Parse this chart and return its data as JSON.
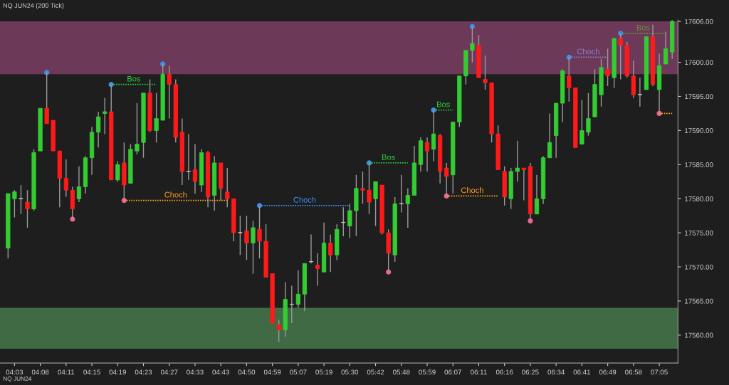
{
  "chart_data": {
    "type": "candlestick",
    "title": "NQ JUN24 (200 Tick)",
    "categories": [
      null,
      "04:03",
      null,
      null,
      null,
      "04:08",
      null,
      null,
      null,
      "04:11",
      null,
      null,
      null,
      "04:15",
      null,
      null,
      null,
      "04:19",
      null,
      null,
      null,
      "04:23",
      null,
      null,
      null,
      "04:27",
      null,
      null,
      null,
      "04:33",
      null,
      null,
      null,
      "04:43",
      null,
      null,
      null,
      "04:50",
      null,
      null,
      null,
      "04:59",
      null,
      null,
      null,
      "05:07",
      null,
      null,
      null,
      "05:19",
      null,
      null,
      null,
      "05:30",
      null,
      null,
      null,
      "05:42",
      null,
      null,
      null,
      "05:48",
      null,
      null,
      null,
      "05:59",
      null,
      null,
      null,
      "06:07",
      null,
      null,
      null,
      "06:11",
      null,
      null,
      null,
      "06:16",
      null,
      null,
      null,
      "06:25",
      null,
      null,
      null,
      "06:34",
      null,
      null,
      null,
      "06:41",
      null,
      null,
      null,
      "06:49",
      null,
      null,
      null,
      "06:58",
      null,
      null,
      null,
      "07:05",
      null,
      null
    ],
    "ohlc": [
      [
        17572.75,
        17580.75,
        17571.25,
        17580.75
      ],
      [
        17580,
        17581.25,
        17577.25,
        17581
      ],
      [
        17580,
        17582,
        17577.75,
        17580
      ],
      [
        17579.5,
        17581.25,
        17575.75,
        17578.5
      ],
      [
        17578.5,
        17587.25,
        17578.25,
        17586.75
      ],
      [
        17587,
        17593.25,
        17587,
        17593.25
      ],
      [
        17593.25,
        17598.5,
        17591,
        17591
      ],
      [
        17591.5,
        17591.5,
        17587,
        17587
      ],
      [
        17587,
        17587,
        17578.75,
        17583
      ],
      [
        17583,
        17585.75,
        17580.25,
        17581.25
      ],
      [
        17581.25,
        17581.75,
        17577,
        17578.5
      ],
      [
        17580,
        17584.75,
        17579.5,
        17581.75
      ],
      [
        17581.75,
        17586.25,
        17580.75,
        17586
      ],
      [
        17586,
        17590.5,
        17583.5,
        17589.75
      ],
      [
        17589.75,
        17592.75,
        17587.5,
        17592
      ],
      [
        17592.5,
        17594.75,
        17589.5,
        17592.75
      ],
      [
        17592.75,
        17596.75,
        17582.75,
        17582.75
      ],
      [
        17582.75,
        17585.5,
        17582.5,
        17585
      ],
      [
        17585.25,
        17588.25,
        17579.75,
        17582
      ],
      [
        17582.25,
        17588,
        17582.25,
        17587.25
      ],
      [
        17587,
        17594,
        17586.5,
        17588
      ],
      [
        17588.25,
        17595.5,
        17586,
        17595.5
      ],
      [
        17595.5,
        17597.5,
        17589.75,
        17590
      ],
      [
        17590,
        17595.5,
        17588.25,
        17591.75
      ],
      [
        17591.5,
        17599.75,
        17591.5,
        17598.25
      ],
      [
        17598.25,
        17599.5,
        17591.75,
        17596.75
      ],
      [
        17596.75,
        17597.5,
        17588.25,
        17589
      ],
      [
        17589.75,
        17591.75,
        17582,
        17584
      ],
      [
        17584,
        17589.5,
        17582.75,
        17584
      ],
      [
        17584.25,
        17588,
        17580.75,
        17582.5
      ],
      [
        17582,
        17587.25,
        17581,
        17586.75
      ],
      [
        17586.75,
        17587,
        17578.75,
        17580.25
      ],
      [
        17580.5,
        17586.25,
        17578.25,
        17585.25
      ],
      [
        17585.25,
        17585.25,
        17579.75,
        17581.5
      ],
      [
        17581,
        17584.5,
        17578.75,
        17580
      ],
      [
        17580,
        17580,
        17573.75,
        17575
      ],
      [
        17575,
        17577.5,
        17571.75,
        17575
      ],
      [
        17575.25,
        17577.5,
        17571,
        17573.5
      ],
      [
        17573.5,
        17576.75,
        17569,
        17575.75
      ],
      [
        17575.5,
        17579,
        17571.25,
        17573.75
      ],
      [
        17573.75,
        17576.25,
        17568.5,
        17568.5
      ],
      [
        17569,
        17569,
        17561.75,
        17561.75
      ],
      [
        17561.5,
        17562.25,
        17559,
        17560.75
      ],
      [
        17560.75,
        17567.75,
        17559.75,
        17565.25
      ],
      [
        17564.5,
        17567.25,
        17561.75,
        17564.5
      ],
      [
        17564.5,
        17569.5,
        17564,
        17566
      ],
      [
        17566,
        17570.5,
        17563.5,
        17570.5
      ],
      [
        17570.75,
        17574.75,
        17570.5,
        17570.75
      ],
      [
        17570.25,
        17572,
        17567.25,
        17569.75
      ],
      [
        17569.25,
        17576.5,
        17569.25,
        17573.5
      ],
      [
        17573.5,
        17574.75,
        17569.25,
        17571.75
      ],
      [
        17571.75,
        17576.25,
        17571,
        17575.5
      ],
      [
        17576.5,
        17578.75,
        17574.5,
        17576.5
      ],
      [
        17576,
        17579.25,
        17574.25,
        17578.25
      ],
      [
        17578.25,
        17583.5,
        17574.5,
        17581.5
      ],
      [
        17581.5,
        17584,
        17579.25,
        17581.25
      ],
      [
        17581.25,
        17585.25,
        17577.75,
        17579.5
      ],
      [
        17580,
        17582.5,
        17576,
        17582.5
      ],
      [
        17582,
        17582,
        17574.75,
        17575
      ],
      [
        17575,
        17575.5,
        17569.25,
        17572
      ],
      [
        17571.75,
        17580.25,
        17570.75,
        17579.25
      ],
      [
        17579.25,
        17583.5,
        17578,
        17579.25
      ],
      [
        17579.25,
        17581.5,
        17575.75,
        17580.5
      ],
      [
        17580.5,
        17587.75,
        17580.5,
        17585.25
      ],
      [
        17585,
        17589,
        17584,
        17588.5
      ],
      [
        17588.25,
        17589,
        17584,
        17587
      ],
      [
        17587.25,
        17593,
        17585.5,
        17589.5
      ],
      [
        17589.25,
        17589.5,
        17582.25,
        17584
      ],
      [
        17584.5,
        17585.25,
        17580.4,
        17583.25
      ],
      [
        17583.5,
        17591.25,
        17580.75,
        17591.25
      ],
      [
        17591.25,
        17598,
        17590.5,
        17598
      ],
      [
        17598,
        17601.75,
        17596.75,
        17601.75
      ],
      [
        17601.75,
        17605.25,
        17600,
        17602.75
      ],
      [
        17602.5,
        17604,
        17597.75,
        17597.75
      ],
      [
        17597.5,
        17601,
        17596,
        17597
      ],
      [
        17597,
        17597,
        17588.25,
        17589.5
      ],
      [
        17589.5,
        17590.75,
        17584.25,
        17584.25
      ],
      [
        17584,
        17584.75,
        17579,
        17580.25
      ],
      [
        17580,
        17584.5,
        17578.5,
        17584
      ],
      [
        17584,
        17588.5,
        17582.5,
        17584.5
      ],
      [
        17584.5,
        17584.5,
        17579.75,
        17584.25
      ],
      [
        17584.75,
        17585.25,
        17576.75,
        17577.75
      ],
      [
        17577.75,
        17583.5,
        17577.75,
        17580
      ],
      [
        17580,
        17586.25,
        17579.25,
        17586
      ],
      [
        17586,
        17592.5,
        17586,
        17588.25
      ],
      [
        17589.25,
        17594,
        17586,
        17594
      ],
      [
        17594,
        17599,
        17591.25,
        17598.75
      ],
      [
        17598,
        17600.75,
        17594.25,
        17596.25
      ],
      [
        17596.25,
        17596.25,
        17587.5,
        17587.5
      ],
      [
        17588,
        17594.5,
        17588,
        17590
      ],
      [
        17589.75,
        17595.5,
        17589.25,
        17591.75
      ],
      [
        17592,
        17599,
        17592,
        17596.75
      ],
      [
        17595.25,
        17600.5,
        17593.5,
        17599.25
      ],
      [
        17599,
        17602,
        17596.5,
        17598
      ],
      [
        17597.75,
        17603.5,
        17596.25,
        17603.5
      ],
      [
        17603.5,
        17604.25,
        17597.5,
        17602.5
      ],
      [
        17602.5,
        17603,
        17597.75,
        17598
      ],
      [
        17598,
        17600.25,
        17594.75,
        17595.25
      ],
      [
        17595.25,
        17597.75,
        17593.5,
        17595.25
      ],
      [
        17596,
        17603.75,
        17596,
        17603.75
      ],
      [
        17603.75,
        17605.5,
        17596.5,
        17596.75
      ],
      [
        17596,
        17601.25,
        17592.5,
        17599.5
      ],
      [
        17599.75,
        17604.5,
        17599.75,
        17602
      ],
      [
        17601.5,
        17606.25,
        17600.5,
        17606
      ]
    ],
    "ylim": [
      17555.9,
      17606.2
    ],
    "yticks": [
      {
        "value": 17560,
        "label": "17560.00"
      },
      {
        "value": 17565,
        "label": "17565.00"
      },
      {
        "value": 17570,
        "label": "17570.00"
      },
      {
        "value": 17575,
        "label": "17575.00"
      },
      {
        "value": 17580,
        "label": "17580.00"
      },
      {
        "value": 17585,
        "label": "17585.00"
      },
      {
        "value": 17590,
        "label": "17590.00"
      },
      {
        "value": 17595,
        "label": "17595.00"
      },
      {
        "value": 17600,
        "label": "17600.00"
      },
      {
        "value": 17606,
        "label": "17606.00"
      }
    ],
    "bands": [
      {
        "axis": "y",
        "from": 17598.25,
        "to": 17606,
        "color": "#8e4470"
      },
      {
        "axis": "y",
        "from": 17558,
        "to": 17564,
        "color": "#4f8a52"
      }
    ],
    "series": [
      {
        "type": "line",
        "name": "Bos",
        "color": "#2ecc40",
        "line_style": "dotted",
        "values": [
          null,
          null,
          null,
          null,
          null,
          null,
          null,
          null,
          null,
          null,
          null,
          null,
          null,
          null,
          null,
          null,
          17596.75,
          17596.75,
          17596.75,
          17596.75,
          17596.75,
          17596.75,
          17596.75,
          17596.75,
          null,
          null,
          null,
          null,
          null,
          null,
          null,
          null,
          null,
          null,
          null,
          null,
          null,
          null,
          null,
          null,
          null,
          null,
          null,
          null,
          null,
          null,
          null,
          null,
          null,
          null,
          null,
          null,
          null,
          null,
          null,
          null,
          null,
          null,
          null,
          null,
          null,
          null,
          null,
          null,
          null,
          null,
          null,
          null,
          null,
          null,
          null,
          null,
          null,
          null,
          null,
          null,
          null,
          null,
          null,
          null,
          null,
          null,
          null,
          null,
          null,
          null,
          null,
          null,
          null,
          null,
          null,
          null,
          null,
          null,
          null,
          null,
          null,
          null,
          null,
          null,
          null,
          null,
          null,
          null
        ]
      },
      {
        "type": "line",
        "name": "Choch",
        "color": "#ff9f1a",
        "line_style": "dotted",
        "values": [
          null,
          null,
          null,
          null,
          null,
          null,
          null,
          null,
          null,
          null,
          null,
          null,
          null,
          null,
          null,
          null,
          null,
          null,
          17579.75,
          17579.75,
          17579.75,
          17579.75,
          17579.75,
          17579.75,
          17579.75,
          17579.75,
          17579.75,
          17579.75,
          17579.75,
          17579.75,
          17579.75,
          17579.75,
          17579.75,
          17579.75,
          17579.75,
          null,
          null,
          null,
          null,
          null,
          null,
          null,
          null,
          null,
          null,
          null,
          null,
          null,
          null,
          null,
          null,
          null,
          null,
          null,
          null,
          null,
          null,
          null,
          null,
          null,
          null,
          null,
          null,
          null,
          null,
          null,
          null,
          null,
          null,
          null,
          null,
          null,
          null,
          null,
          null,
          null,
          null,
          null,
          null,
          null,
          null,
          null,
          null,
          null,
          null,
          null,
          null,
          null,
          null,
          null,
          null,
          null,
          null,
          null,
          null,
          null,
          null,
          null,
          null,
          null,
          null,
          null,
          null,
          null
        ]
      },
      {
        "type": "line",
        "name": "Choch",
        "color": "#3b8eea",
        "line_style": "dotted",
        "values": [
          null,
          null,
          null,
          null,
          null,
          null,
          null,
          null,
          null,
          null,
          null,
          null,
          null,
          null,
          null,
          null,
          null,
          null,
          null,
          null,
          null,
          null,
          null,
          null,
          null,
          null,
          null,
          null,
          null,
          null,
          null,
          null,
          null,
          null,
          null,
          null,
          null,
          null,
          null,
          17579,
          17579,
          17579,
          17579,
          17579,
          17579,
          17579,
          17579,
          17579,
          17579,
          17579,
          17579,
          17579,
          17579,
          17579,
          null,
          null,
          null,
          null,
          null,
          null,
          null,
          null,
          null,
          null,
          null,
          null,
          null,
          null,
          null,
          null,
          null,
          null,
          null,
          null,
          null,
          null,
          null,
          null,
          null,
          null,
          null,
          null,
          null,
          null,
          null,
          null,
          null,
          null,
          null,
          null,
          null,
          null,
          null,
          null,
          null,
          null,
          null,
          null,
          null,
          null,
          null,
          null,
          null,
          null
        ]
      },
      {
        "type": "line",
        "name": "Bos",
        "color": "#2ecc40",
        "line_style": "dotted",
        "values": [
          null,
          null,
          null,
          null,
          null,
          null,
          null,
          null,
          null,
          null,
          null,
          null,
          null,
          null,
          null,
          null,
          null,
          null,
          null,
          null,
          null,
          null,
          null,
          null,
          null,
          null,
          null,
          null,
          null,
          null,
          null,
          null,
          null,
          null,
          null,
          null,
          null,
          null,
          null,
          null,
          null,
          null,
          null,
          null,
          null,
          null,
          null,
          null,
          null,
          null,
          null,
          null,
          null,
          null,
          null,
          null,
          17585.25,
          17585.25,
          17585.25,
          17585.25,
          17585.25,
          17585.25,
          17585.25,
          null,
          null,
          null,
          null,
          null,
          null,
          null,
          null,
          null,
          null,
          null,
          null,
          null,
          null,
          null,
          null,
          null,
          null,
          null,
          null,
          null,
          null,
          null,
          null,
          null,
          null,
          null,
          null,
          null,
          null,
          null,
          null,
          null,
          null,
          null,
          null,
          null,
          null,
          null,
          null,
          null
        ]
      },
      {
        "type": "line",
        "name": "Bos",
        "color": "#2ecc40",
        "line_style": "dotted",
        "values": [
          null,
          null,
          null,
          null,
          null,
          null,
          null,
          null,
          null,
          null,
          null,
          null,
          null,
          null,
          null,
          null,
          null,
          null,
          null,
          null,
          null,
          null,
          null,
          null,
          null,
          null,
          null,
          null,
          null,
          null,
          null,
          null,
          null,
          null,
          null,
          null,
          null,
          null,
          null,
          null,
          null,
          null,
          null,
          null,
          null,
          null,
          null,
          null,
          null,
          null,
          null,
          null,
          null,
          null,
          null,
          null,
          null,
          null,
          null,
          null,
          null,
          null,
          null,
          null,
          null,
          null,
          17593,
          17593,
          17593,
          17593,
          null,
          null,
          null,
          null,
          null,
          null,
          null,
          null,
          null,
          null,
          null,
          null,
          null,
          null,
          null,
          null,
          null,
          null,
          null,
          null,
          null,
          null,
          null,
          null,
          null,
          null,
          null,
          null,
          null,
          null,
          null,
          null,
          null,
          null
        ]
      },
      {
        "type": "line",
        "name": "Choch",
        "color": "#ff9f1a",
        "line_style": "dotted",
        "values": [
          null,
          null,
          null,
          null,
          null,
          null,
          null,
          null,
          null,
          null,
          null,
          null,
          null,
          null,
          null,
          null,
          null,
          null,
          null,
          null,
          null,
          null,
          null,
          null,
          null,
          null,
          null,
          null,
          null,
          null,
          null,
          null,
          null,
          null,
          null,
          null,
          null,
          null,
          null,
          null,
          null,
          null,
          null,
          null,
          null,
          null,
          null,
          null,
          null,
          null,
          null,
          null,
          null,
          null,
          null,
          null,
          null,
          null,
          null,
          null,
          null,
          null,
          null,
          null,
          null,
          null,
          null,
          null,
          17580.4,
          17580.4,
          17580.4,
          17580.4,
          17580.4,
          17580.4,
          17580.4,
          17580.4,
          17580.4,
          null,
          null,
          null,
          null,
          null,
          null,
          null,
          null,
          null,
          null,
          null,
          null,
          null,
          null,
          null,
          null,
          null,
          null,
          null,
          null,
          null,
          null,
          null,
          null,
          null,
          null,
          null
        ]
      },
      {
        "type": "line",
        "name": "Choch",
        "color": "#8a7fd6",
        "line_style": "dotted",
        "values": [
          null,
          null,
          null,
          null,
          null,
          null,
          null,
          null,
          null,
          null,
          null,
          null,
          null,
          null,
          null,
          null,
          null,
          null,
          null,
          null,
          null,
          null,
          null,
          null,
          null,
          null,
          null,
          null,
          null,
          null,
          null,
          null,
          null,
          null,
          null,
          null,
          null,
          null,
          null,
          null,
          null,
          null,
          null,
          null,
          null,
          null,
          null,
          null,
          null,
          null,
          null,
          null,
          null,
          null,
          null,
          null,
          null,
          null,
          null,
          null,
          null,
          null,
          null,
          null,
          null,
          null,
          null,
          null,
          null,
          null,
          null,
          null,
          null,
          null,
          null,
          null,
          null,
          null,
          null,
          null,
          null,
          null,
          null,
          null,
          null,
          null,
          null,
          17600.75,
          17600.75,
          17600.75,
          17600.75,
          17600.75,
          17600.75,
          17600.75,
          null,
          null,
          null,
          null,
          null,
          null,
          null,
          null,
          null,
          null
        ]
      },
      {
        "type": "line",
        "name": "Bos",
        "color": "#6b8e3a",
        "line_style": "dotted",
        "values": [
          null,
          null,
          null,
          null,
          null,
          null,
          null,
          null,
          null,
          null,
          null,
          null,
          null,
          null,
          null,
          null,
          null,
          null,
          null,
          null,
          null,
          null,
          null,
          null,
          null,
          null,
          null,
          null,
          null,
          null,
          null,
          null,
          null,
          null,
          null,
          null,
          null,
          null,
          null,
          null,
          null,
          null,
          null,
          null,
          null,
          null,
          null,
          null,
          null,
          null,
          null,
          null,
          null,
          null,
          null,
          null,
          null,
          null,
          null,
          null,
          null,
          null,
          null,
          null,
          null,
          null,
          null,
          null,
          null,
          null,
          null,
          null,
          null,
          null,
          null,
          null,
          null,
          null,
          null,
          null,
          null,
          null,
          null,
          null,
          null,
          null,
          null,
          null,
          null,
          null,
          null,
          null,
          null,
          null,
          null,
          17604.25,
          17604.25,
          17604.25,
          17604.25,
          17604.25,
          17604.25,
          17604.25,
          17604.25,
          null
        ]
      },
      {
        "type": "line",
        "color": "#ff9f1a",
        "line_style": "dotted",
        "values": [
          null,
          null,
          null,
          null,
          null,
          null,
          null,
          null,
          null,
          null,
          null,
          null,
          null,
          null,
          null,
          null,
          null,
          null,
          null,
          null,
          null,
          null,
          null,
          null,
          null,
          null,
          null,
          null,
          null,
          null,
          null,
          null,
          null,
          null,
          null,
          null,
          null,
          null,
          null,
          null,
          null,
          null,
          null,
          null,
          null,
          null,
          null,
          null,
          null,
          null,
          null,
          null,
          null,
          null,
          null,
          null,
          null,
          null,
          null,
          null,
          null,
          null,
          null,
          null,
          null,
          null,
          null,
          null,
          null,
          null,
          null,
          null,
          null,
          null,
          null,
          null,
          null,
          null,
          null,
          null,
          null,
          null,
          null,
          null,
          null,
          null,
          null,
          null,
          null,
          null,
          null,
          null,
          null,
          null,
          null,
          null,
          null,
          null,
          null,
          null,
          null,
          17592.5,
          17592.5,
          17592.5
        ]
      },
      {
        "type": "scatter",
        "color": "#3b8eea",
        "values": [
          null,
          null,
          null,
          null,
          null,
          null,
          17598.5,
          null,
          null,
          null,
          null,
          null,
          null,
          null,
          null,
          null,
          17596.75,
          null,
          null,
          null,
          null,
          null,
          null,
          null,
          17599.75,
          null,
          null,
          null,
          null,
          null,
          null,
          null,
          null,
          null,
          null,
          null,
          null,
          null,
          null,
          17579,
          null,
          null,
          null,
          null,
          null,
          null,
          null,
          null,
          null,
          null,
          null,
          null,
          null,
          null,
          null,
          null,
          17585.25,
          null,
          null,
          null,
          null,
          null,
          null,
          null,
          null,
          null,
          17593,
          null,
          null,
          null,
          null,
          null,
          17605.25,
          null,
          null,
          null,
          null,
          null,
          null,
          null,
          null,
          null,
          null,
          null,
          null,
          null,
          null,
          17600.75,
          null,
          null,
          null,
          null,
          null,
          null,
          null,
          17604.25,
          null,
          null,
          null,
          null,
          null,
          null,
          null,
          null
        ]
      },
      {
        "type": "scatter",
        "color": "#f06292",
        "values": [
          null,
          null,
          null,
          null,
          null,
          null,
          null,
          null,
          null,
          null,
          17577,
          null,
          null,
          null,
          null,
          null,
          null,
          null,
          17579.75,
          null,
          null,
          null,
          null,
          null,
          null,
          null,
          null,
          null,
          null,
          null,
          null,
          null,
          null,
          null,
          null,
          null,
          null,
          null,
          null,
          null,
          null,
          null,
          null,
          null,
          null,
          null,
          null,
          null,
          null,
          null,
          null,
          null,
          null,
          null,
          null,
          null,
          null,
          null,
          null,
          17569.25,
          null,
          null,
          null,
          null,
          null,
          null,
          null,
          null,
          17580.4,
          null,
          null,
          null,
          null,
          null,
          null,
          null,
          null,
          null,
          null,
          null,
          null,
          17576.75,
          null,
          null,
          null,
          null,
          null,
          null,
          null,
          null,
          null,
          null,
          null,
          null,
          null,
          null,
          null,
          null,
          null,
          null,
          null,
          17592.5,
          null,
          null
        ]
      }
    ],
    "annotations": [
      "NQ JUN24"
    ],
    "grid": false,
    "legend": false
  }
}
